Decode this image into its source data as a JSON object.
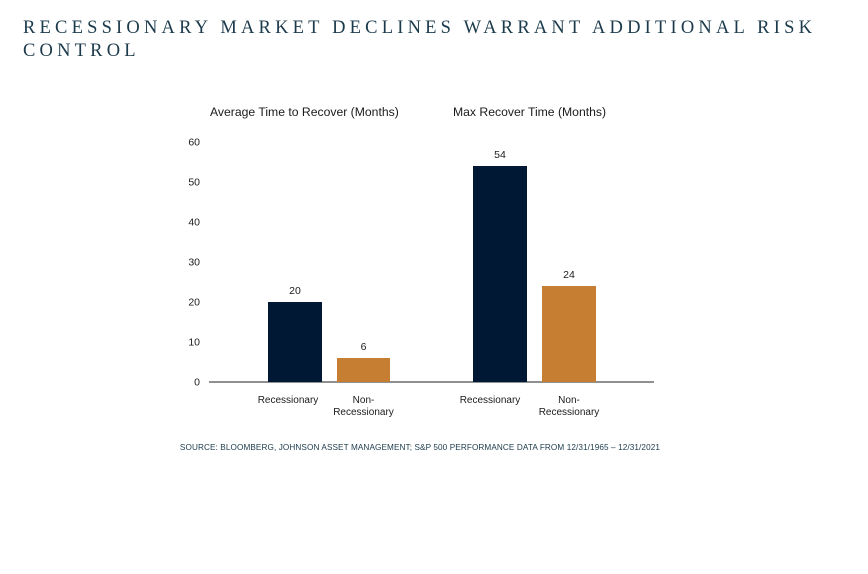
{
  "page": {
    "title": "RECESSIONARY MARKET DECLINES WARRANT ADDITIONAL RISK CONTROL",
    "source": "SOURCE: BLOOMBERG, JOHNSON ASSET MANAGEMENT; S&P 500 PERFORMANCE DATA FROM 12/31/1965 – 12/31/2021"
  },
  "colors": {
    "recessionary": "#011835",
    "non_recessionary": "#c67e33",
    "text": "#1b1b1b",
    "title": "#1b3a4b"
  },
  "chart_data": {
    "type": "bar",
    "ylim": [
      0,
      60
    ],
    "yticks": [
      0,
      10,
      20,
      30,
      40,
      50,
      60
    ],
    "grid": false,
    "groups": [
      {
        "title": "Average Time to Recover (Months)",
        "categories": [
          "Recessionary",
          "Non-\nRecessionary"
        ],
        "values": [
          20,
          6
        ]
      },
      {
        "title": "Max Recover Time (Months)",
        "categories": [
          "Recessionary",
          "Non-\nRecessionary"
        ],
        "values": [
          54,
          24
        ]
      }
    ]
  }
}
